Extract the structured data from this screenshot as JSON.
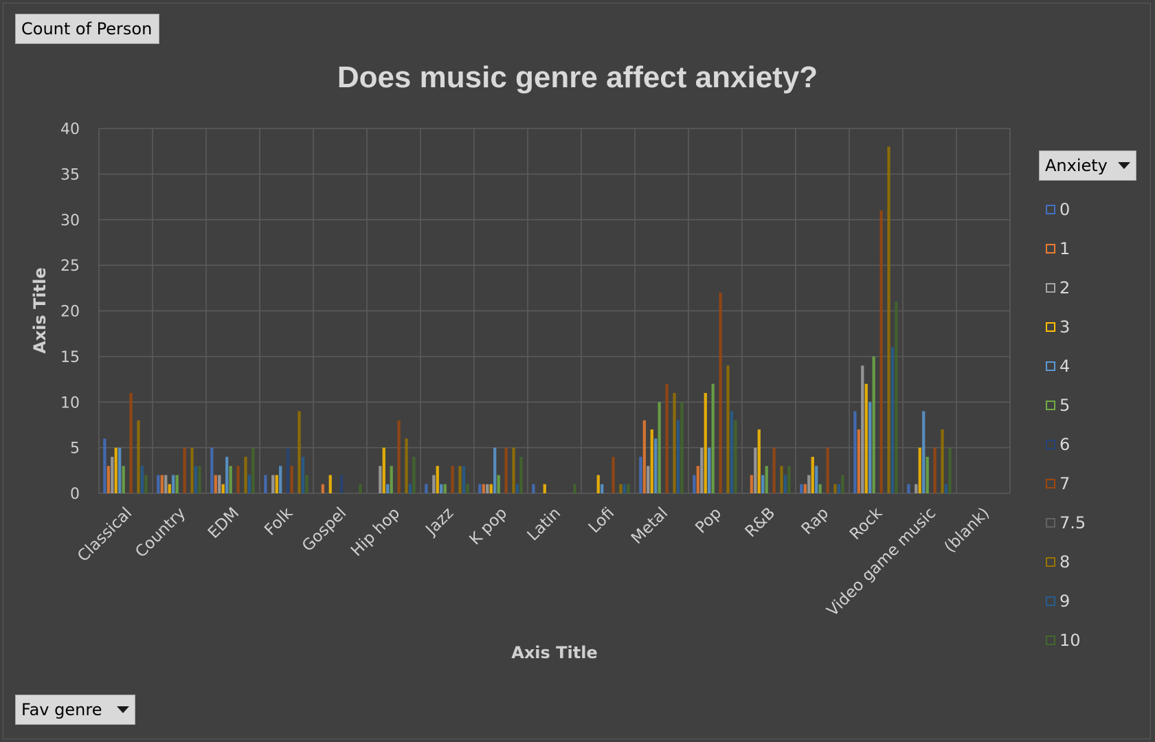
{
  "buttons": {
    "count_label": "Count of Person",
    "fav_genre_label": "Fav genre",
    "anxiety_label": "Anxiety"
  },
  "colors": [
    "#4472c4",
    "#ed7d31",
    "#a5a5a5",
    "#ffc000",
    "#5b9bd5",
    "#70ad47",
    "#264478",
    "#9e480e",
    "#636363",
    "#997300",
    "#255e91",
    "#43682b"
  ],
  "chart_data": {
    "type": "bar",
    "title": "Does music genre affect anxiety?",
    "xlabel": "Axis Title",
    "ylabel": "Axis Title",
    "ylim": [
      0,
      40
    ],
    "yticks": [
      0,
      5,
      10,
      15,
      20,
      25,
      30,
      35,
      40
    ],
    "grid": true,
    "legend_placement": "right",
    "legend_title": "Anxiety",
    "categories": [
      "Classical",
      "Country",
      "EDM",
      "Folk",
      "Gospel",
      "Hip hop",
      "Jazz",
      "K pop",
      "Latin",
      "Lofi",
      "Metal",
      "Pop",
      "R&B",
      "Rap",
      "Rock",
      "Video game music",
      "(blank)"
    ],
    "series": [
      {
        "name": "0",
        "values": [
          6,
          2,
          5,
          2,
          0,
          0,
          1,
          1,
          1,
          0,
          4,
          2,
          0,
          1,
          9,
          1,
          0
        ]
      },
      {
        "name": "1",
        "values": [
          3,
          2,
          2,
          0,
          1,
          0,
          0,
          1,
          0,
          0,
          8,
          3,
          2,
          1,
          7,
          0,
          0
        ]
      },
      {
        "name": "2",
        "values": [
          4,
          2,
          2,
          2,
          0,
          3,
          2,
          1,
          0,
          0,
          3,
          5,
          5,
          2,
          14,
          1,
          0
        ]
      },
      {
        "name": "3",
        "values": [
          5,
          1,
          1,
          2,
          2,
          5,
          3,
          1,
          1,
          2,
          7,
          11,
          7,
          4,
          12,
          5,
          0
        ]
      },
      {
        "name": "4",
        "values": [
          5,
          2,
          4,
          3,
          0,
          1,
          1,
          5,
          0,
          1,
          6,
          5,
          2,
          3,
          10,
          9,
          0
        ]
      },
      {
        "name": "5",
        "values": [
          3,
          2,
          3,
          0,
          0,
          3,
          1,
          2,
          0,
          0,
          10,
          12,
          3,
          1,
          15,
          4,
          0
        ]
      },
      {
        "name": "6",
        "values": [
          0,
          0,
          0,
          5,
          2,
          0,
          0,
          0,
          0,
          0,
          0,
          0,
          0,
          0,
          0,
          0,
          0
        ]
      },
      {
        "name": "7",
        "values": [
          11,
          5,
          3,
          3,
          0,
          8,
          3,
          5,
          0,
          4,
          12,
          22,
          5,
          5,
          31,
          5,
          0
        ]
      },
      {
        "name": "7.5",
        "values": [
          0,
          0,
          0,
          0,
          0,
          0,
          0,
          0,
          0,
          0,
          0,
          0,
          0,
          0,
          0,
          0,
          0
        ]
      },
      {
        "name": "8",
        "values": [
          8,
          5,
          4,
          9,
          0,
          6,
          3,
          5,
          0,
          1,
          11,
          14,
          3,
          1,
          38,
          7,
          0
        ]
      },
      {
        "name": "9",
        "values": [
          3,
          3,
          2,
          4,
          0,
          1,
          3,
          1,
          0,
          1,
          8,
          9,
          2,
          1,
          16,
          1,
          0
        ]
      },
      {
        "name": "10",
        "values": [
          2,
          3,
          5,
          2,
          1,
          4,
          1,
          4,
          1,
          1,
          10,
          8,
          3,
          2,
          21,
          5,
          0
        ]
      }
    ]
  }
}
